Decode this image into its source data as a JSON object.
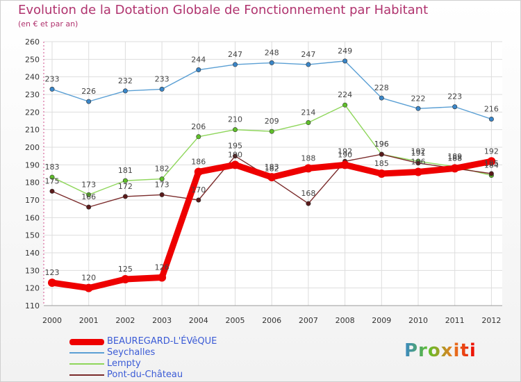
{
  "chart_data": {
    "type": "line",
    "title": "Evolution de la Dotation Globale de Fonctionnement par Habitant",
    "subtitle": "(en € et par an)",
    "xlabel": "",
    "ylabel": "",
    "ylim": [
      110,
      260
    ],
    "y_ticks": [
      110,
      120,
      130,
      140,
      150,
      160,
      170,
      180,
      190,
      200,
      210,
      220,
      230,
      240,
      250,
      260
    ],
    "categories": [
      "2000",
      "2001",
      "2002",
      "2003",
      "2004",
      "2005",
      "2006",
      "2007",
      "2008",
      "2009",
      "2010",
      "2011",
      "2012"
    ],
    "grid": true,
    "legend_position": "bottom-left",
    "series": [
      {
        "name": "Seychalles",
        "values": [
          233,
          226,
          232,
          233,
          244,
          247,
          248,
          247,
          249,
          228,
          222,
          223,
          216
        ],
        "color": "#5a9fd4",
        "marker": "#3a86c8",
        "width": "thin"
      },
      {
        "name": "Lempty",
        "values": [
          183,
          173,
          181,
          182,
          206,
          210,
          209,
          214,
          224,
          196,
          192,
          189,
          184
        ],
        "color": "#8ed65a",
        "marker": "#5fbf2a",
        "width": "thin"
      },
      {
        "name": "Pont-du-Château",
        "values": [
          175,
          166,
          172,
          173,
          170,
          195,
          182,
          168,
          192,
          196,
          191,
          188,
          185
        ],
        "color": "#7a2a2a",
        "marker": "#5a1a1a",
        "width": "thin"
      },
      {
        "name": "BEAUREGARD-L'ÉVêQUE",
        "values": [
          123,
          120,
          125,
          126,
          186,
          190,
          183,
          188,
          190,
          185,
          186,
          188,
          192
        ],
        "color": "#ee0000",
        "marker": "#ee0000",
        "width": "thick"
      }
    ],
    "legend_order": [
      "BEAUREGARD-L'ÉVêQUE",
      "Seychalles",
      "Lempty",
      "Pont-du-Château"
    ]
  },
  "logo": {
    "text": "Proxiti"
  }
}
